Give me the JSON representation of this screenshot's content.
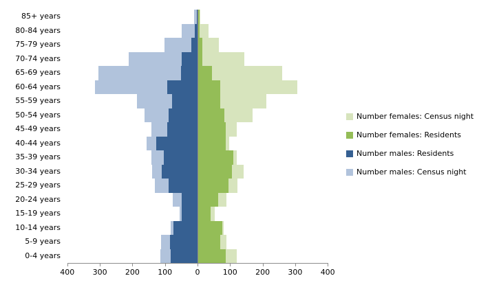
{
  "chart_data": {
    "type": "bar",
    "subtype": "population_pyramid",
    "title": "",
    "xlabel": "",
    "ylabel": "",
    "grid": false,
    "legend_position": "right",
    "categories": [
      "85+ years",
      "80-84 years",
      "75-79 years",
      "70-74 years",
      "65-69 years",
      "60-64 years",
      "55-59 years",
      "50-54 years",
      "45-49 years",
      "40-44 years",
      "35-39 years",
      "30-34 years",
      "25-29 years",
      "20-24 years",
      "15-19 years",
      "10-14 years",
      "5-9 years",
      "0-4 years"
    ],
    "series": [
      {
        "name": "Number females: Census night",
        "side": "right",
        "overlay": false,
        "color": "#D7E4BD",
        "values": [
          6,
          31,
          63,
          142,
          258,
          305,
          210,
          168,
          119,
          95,
          119,
          140,
          121,
          87,
          51,
          78,
          87,
          119
        ]
      },
      {
        "name": "Number females: Residents",
        "side": "right",
        "overlay": true,
        "color": "#94BD57",
        "values": [
          5,
          5,
          12,
          13,
          43,
          68,
          68,
          80,
          85,
          84,
          108,
          104,
          94,
          61,
          37,
          73,
          68,
          84
        ]
      },
      {
        "name": "Number males: Residents",
        "side": "left",
        "overlay": true,
        "color": "#366092",
        "values": [
          2,
          8,
          18,
          48,
          50,
          94,
          78,
          88,
          94,
          127,
          103,
          110,
          89,
          48,
          48,
          75,
          85,
          82
        ]
      },
      {
        "name": "Number males: Census night",
        "side": "left",
        "overlay": false,
        "color": "#B1C3DC",
        "values": [
          11,
          48,
          101,
          212,
          304,
          316,
          187,
          163,
          142,
          156,
          142,
          140,
          131,
          76,
          55,
          83,
          111,
          114
        ]
      }
    ],
    "x_axis": {
      "tick_labels": [
        "400",
        "300",
        "200",
        "100",
        "0",
        "100",
        "200",
        "300",
        "400"
      ],
      "units_per_tick": 100,
      "max_each_side": 400
    }
  }
}
